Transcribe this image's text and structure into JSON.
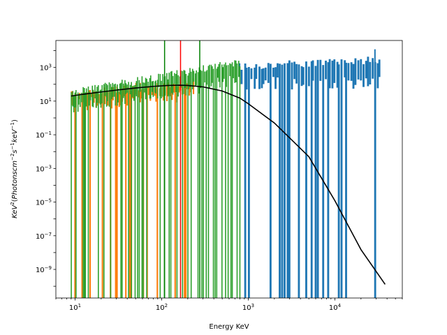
{
  "chart_data": {
    "type": "bar",
    "title": "",
    "xlabel": "Energy KeV",
    "ylabel": "KeV$^2$(Photonscm$^{-2}$s$^{-1}$keV$^{-1}$)",
    "ylabel_parts": {
      "base": "KeV",
      "sup1": "2",
      "open": "(",
      "photons": "Photonscm",
      "sup2": "−2",
      "s": "s",
      "sup3": "−1",
      "kev": "keV",
      "sup4": "−1",
      "close": ")"
    },
    "x_scale": "log",
    "y_scale": "log",
    "xlim": [
      6,
      60000
    ],
    "ylim": [
      2e-11,
      40000
    ],
    "x_ticks": [
      {
        "base": "10",
        "exp": "1",
        "value": 10
      },
      {
        "base": "10",
        "exp": "2",
        "value": 100
      },
      {
        "base": "10",
        "exp": "3",
        "value": 1000
      },
      {
        "base": "10",
        "exp": "4",
        "value": 10000
      }
    ],
    "y_ticks": [
      {
        "base": "10",
        "exp": "−9",
        "value": 1e-09
      },
      {
        "base": "10",
        "exp": "−7",
        "value": 1e-07
      },
      {
        "base": "10",
        "exp": "−5",
        "value": 1e-05
      },
      {
        "base": "10",
        "exp": "−3",
        "value": 0.001
      },
      {
        "base": "10",
        "exp": "−1",
        "value": 0.1
      },
      {
        "base": "10",
        "exp": "1",
        "value": 10
      },
      {
        "base": "10",
        "exp": "3",
        "value": 1000
      }
    ],
    "grid": false,
    "legend": "none",
    "series": [
      {
        "color": "#1f77b4",
        "x_range": [
          800,
          33000
        ],
        "count": 60,
        "y_low_start": 300,
        "y_low_end": 300,
        "y_high_start": 1200,
        "y_high_end": 3000,
        "dropout_fraction": 0.4,
        "extreme_top": [
          [
            29000,
            12000
          ]
        ]
      },
      {
        "color": "#ff7f0e",
        "x_range": [
          9,
          230
        ],
        "count": 70,
        "y_low_start": 14,
        "y_low_end": 60,
        "y_high_start": 30,
        "y_high_end": 150,
        "dropout_fraction": 0.35
      },
      {
        "color": "#2ca02c",
        "x_range": [
          9,
          800
        ],
        "count": 130,
        "y_low_start": 12,
        "y_low_end": 400,
        "y_high_start": 30,
        "y_high_end": 2000,
        "dropout_fraction": 0.3
      }
    ],
    "model_curve": {
      "color": "#000000",
      "x": [
        9,
        12,
        20,
        30,
        50,
        80,
        120,
        160,
        200,
        300,
        500,
        800,
        1000,
        2000,
        5000,
        10000,
        20000,
        38000
      ],
      "y": [
        20,
        25,
        35,
        45,
        60,
        75,
        85,
        88,
        85,
        70,
        40,
        15,
        7,
        0.5,
        0.005,
        1.2e-05,
        1.5e-08,
        1.3e-10
      ]
    },
    "vertical_lines": [
      {
        "x": 108,
        "color": "#008000"
      },
      {
        "x": 165,
        "color": "#ff0000"
      },
      {
        "x": 275,
        "color": "#008000"
      }
    ]
  }
}
